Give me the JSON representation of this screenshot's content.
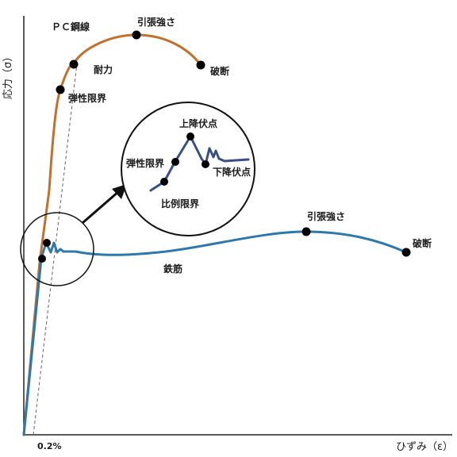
{
  "axes": {
    "y_label": "応力（σ）",
    "x_label": "ひずみ（ε）",
    "x_tick": "0.2%"
  },
  "pc_wire": {
    "name": "ＰＣ鋼線",
    "color": "#c2702c",
    "points": {
      "elastic_limit": "弾性限界",
      "yield_strength": "耐力",
      "tensile_strength": "引張強さ",
      "fracture": "破断"
    }
  },
  "rebar": {
    "name": "鉄筋",
    "color": "#2e78ac",
    "points": {
      "tensile_strength": "引張強さ",
      "fracture": "破断"
    }
  },
  "inset": {
    "color": "#3a4f86",
    "points": {
      "upper_yield": "上降伏点",
      "elastic_limit": "弾性限界",
      "lower_yield": "下降伏点",
      "proportional_limit": "比例限界"
    }
  }
}
